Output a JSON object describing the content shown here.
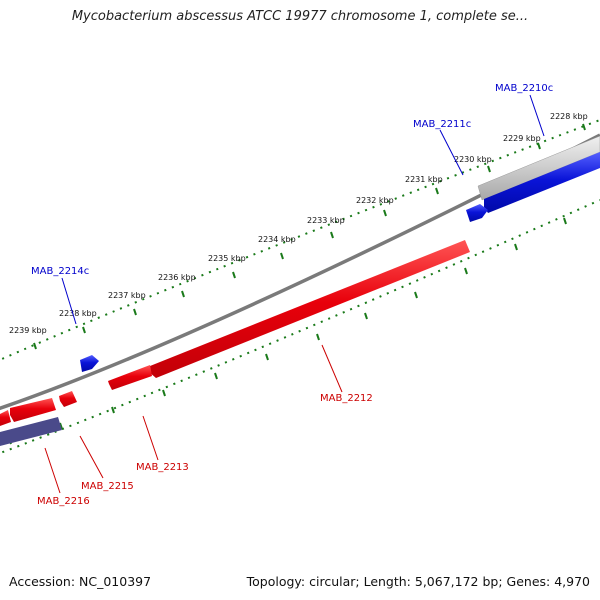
{
  "title": "Mycobacterium abscessus ATCC 19977 chromosome 1, complete se...",
  "footer": {
    "accession": "Accession: NC_010397",
    "summary": "Topology: circular; Length: 5,067,172 bp; Genes: 4,970"
  },
  "colors": {
    "forward_gene": "#e8000b",
    "reverse_gene": "#0a14d8",
    "reverse_gene_faded": "#4a4a8a",
    "backbone": "#7a7a7a",
    "ruler": "#1a7a1a",
    "forward_label": "#cc0000",
    "reverse_label": "#0000cc"
  },
  "ruler_ticks": [
    "2228 kbp",
    "2229 kbp",
    "2230 kbp",
    "2231 kbp",
    "2232 kbp",
    "2233 kbp",
    "2234 kbp",
    "2235 kbp",
    "2236 kbp",
    "2237 kbp",
    "2238 kbp",
    "2239 kbp"
  ],
  "gene_labels": {
    "mab_2210c": "MAB_2210c",
    "mab_2211c": "MAB_2211c",
    "mab_2214c": "MAB_2214c",
    "mab_2212": "MAB_2212",
    "mab_2213": "MAB_2213",
    "mab_2215": "MAB_2215",
    "mab_2216": "MAB_2216"
  }
}
